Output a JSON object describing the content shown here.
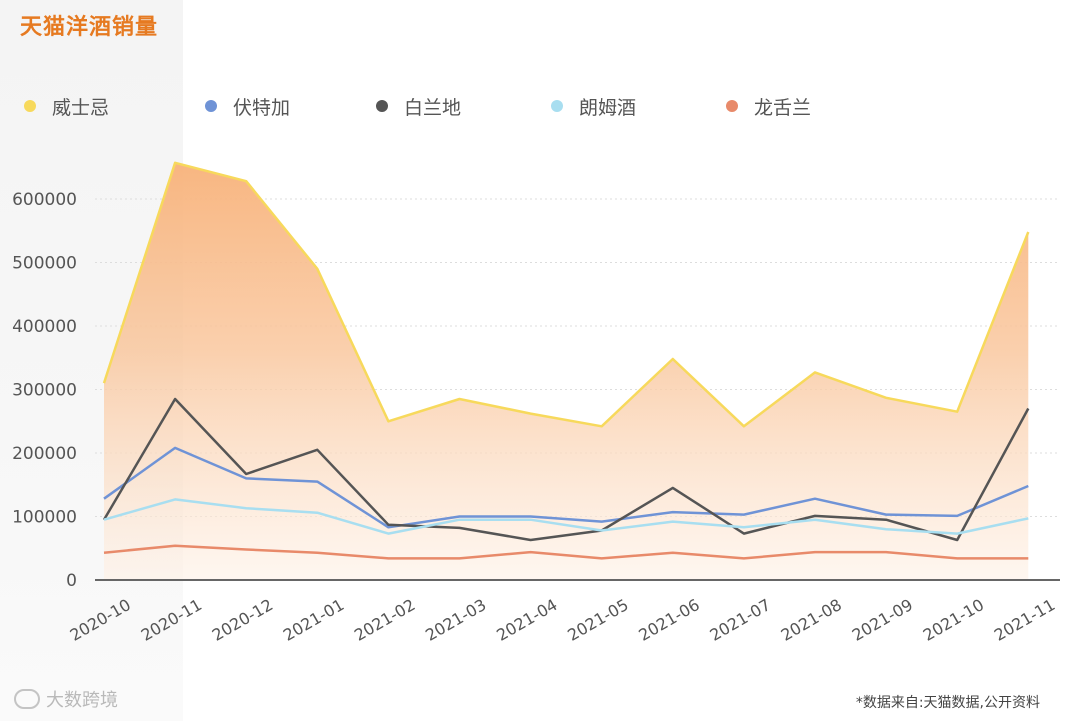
{
  "header": {
    "title": "天猫洋酒销量"
  },
  "footer": {
    "watermark": "大数跨境",
    "source": "*数据来自:天猫数据,公开资料"
  },
  "colors": {
    "title": "#e67a21",
    "whisky": "#f7d95c",
    "vodka": "#6f93d6",
    "brandy": "#555555",
    "rum": "#a8def0",
    "tequila": "#e88a6a",
    "area_top": "#f8b27a"
  },
  "chart_data": {
    "type": "line",
    "title": "天猫洋酒销量",
    "categories": [
      "2020-10",
      "2020-11",
      "2020-12",
      "2021-01",
      "2021-02",
      "2021-03",
      "2021-04",
      "2021-05",
      "2021-06",
      "2021-07",
      "2021-08",
      "2021-09",
      "2021-10",
      "2021-11"
    ],
    "y_ticks": [
      "0",
      "100000",
      "200000",
      "300000",
      "400000",
      "500000",
      "600000"
    ],
    "ylim": [
      0,
      600000
    ],
    "grid": true,
    "legend": "top",
    "series": [
      {
        "name": "威士忌",
        "color": "#f7d95c",
        "style": "area",
        "values": [
          310000,
          657000,
          628000,
          490000,
          250000,
          285000,
          262000,
          242000,
          348000,
          242000,
          327000,
          287000,
          265000,
          548000
        ]
      },
      {
        "name": "伏特加",
        "color": "#6f93d6",
        "style": "line",
        "values": [
          128000,
          208000,
          160000,
          155000,
          83000,
          100000,
          100000,
          92000,
          107000,
          103000,
          128000,
          103000,
          101000,
          148000
        ]
      },
      {
        "name": "白兰地",
        "color": "#555555",
        "style": "line",
        "values": [
          95000,
          285000,
          167000,
          205000,
          87000,
          82000,
          63000,
          78000,
          145000,
          73000,
          101000,
          95000,
          63000,
          270000
        ]
      },
      {
        "name": "朗姆酒",
        "color": "#a8def0",
        "style": "line",
        "values": [
          95000,
          127000,
          113000,
          106000,
          73000,
          95000,
          95000,
          78000,
          92000,
          83000,
          95000,
          80000,
          73000,
          97000
        ]
      },
      {
        "name": "龙舌兰",
        "color": "#e88a6a",
        "style": "line",
        "values": [
          43000,
          54000,
          48000,
          43000,
          34000,
          34000,
          44000,
          34000,
          43000,
          34000,
          44000,
          44000,
          34000,
          34000
        ]
      }
    ]
  }
}
